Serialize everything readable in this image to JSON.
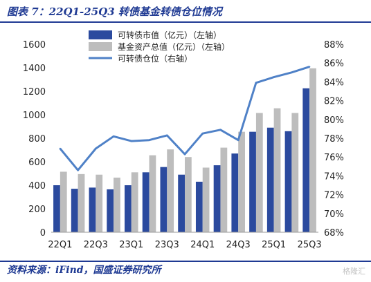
{
  "figure": {
    "title": "图表 7：22Q1-25Q3 转债基金转债仓位情况",
    "source": "资料来源：iFind，国盛证券研究所",
    "watermark": "格隆汇"
  },
  "colors": {
    "cb_bar": "#2b4a9e",
    "fund_bar": "#bdbdbd",
    "position_line": "#4f81c7",
    "title_blue": "#1f3a93"
  },
  "chart_data": {
    "type": "bar",
    "categories": [
      "22Q1",
      "22Q2",
      "22Q3",
      "22Q4",
      "23Q1",
      "23Q2",
      "23Q3",
      "23Q4",
      "24Q1",
      "24Q2",
      "24Q3",
      "24Q4",
      "25Q1",
      "25Q2",
      "25Q3"
    ],
    "xtick_labels": [
      "22Q1",
      "22Q3",
      "23Q1",
      "23Q3",
      "24Q1",
      "24Q3",
      "25Q1",
      "25Q3"
    ],
    "series": [
      {
        "name": "可转债市值（亿元）（左轴）",
        "type": "bar",
        "axis": "left",
        "values": [
          400,
          370,
          380,
          365,
          400,
          510,
          555,
          490,
          430,
          570,
          670,
          855,
          890,
          860,
          1225
        ]
      },
      {
        "name": "基金资产总值（亿元）（左轴）",
        "type": "bar",
        "axis": "left",
        "values": [
          515,
          495,
          490,
          465,
          510,
          655,
          705,
          640,
          550,
          720,
          855,
          1015,
          1055,
          1015,
          1395
        ]
      },
      {
        "name": "可转债仓位（右轴）",
        "type": "line",
        "axis": "right",
        "values": [
          76.9,
          74.6,
          76.9,
          78.2,
          77.7,
          77.8,
          78.3,
          76.3,
          78.5,
          78.9,
          77.8,
          83.9,
          84.5,
          85.0,
          85.6
        ]
      }
    ],
    "y_left": {
      "ticks": [
        0,
        200,
        400,
        600,
        800,
        1000,
        1200,
        1400,
        1600
      ],
      "ylim": [
        0,
        1600
      ]
    },
    "y_right": {
      "ticks": [
        "68%",
        "70%",
        "72%",
        "74%",
        "76%",
        "78%",
        "80%",
        "82%",
        "84%",
        "86%",
        "88%"
      ],
      "ylim": [
        68,
        88
      ]
    },
    "legend": "top-center",
    "grid": false
  }
}
